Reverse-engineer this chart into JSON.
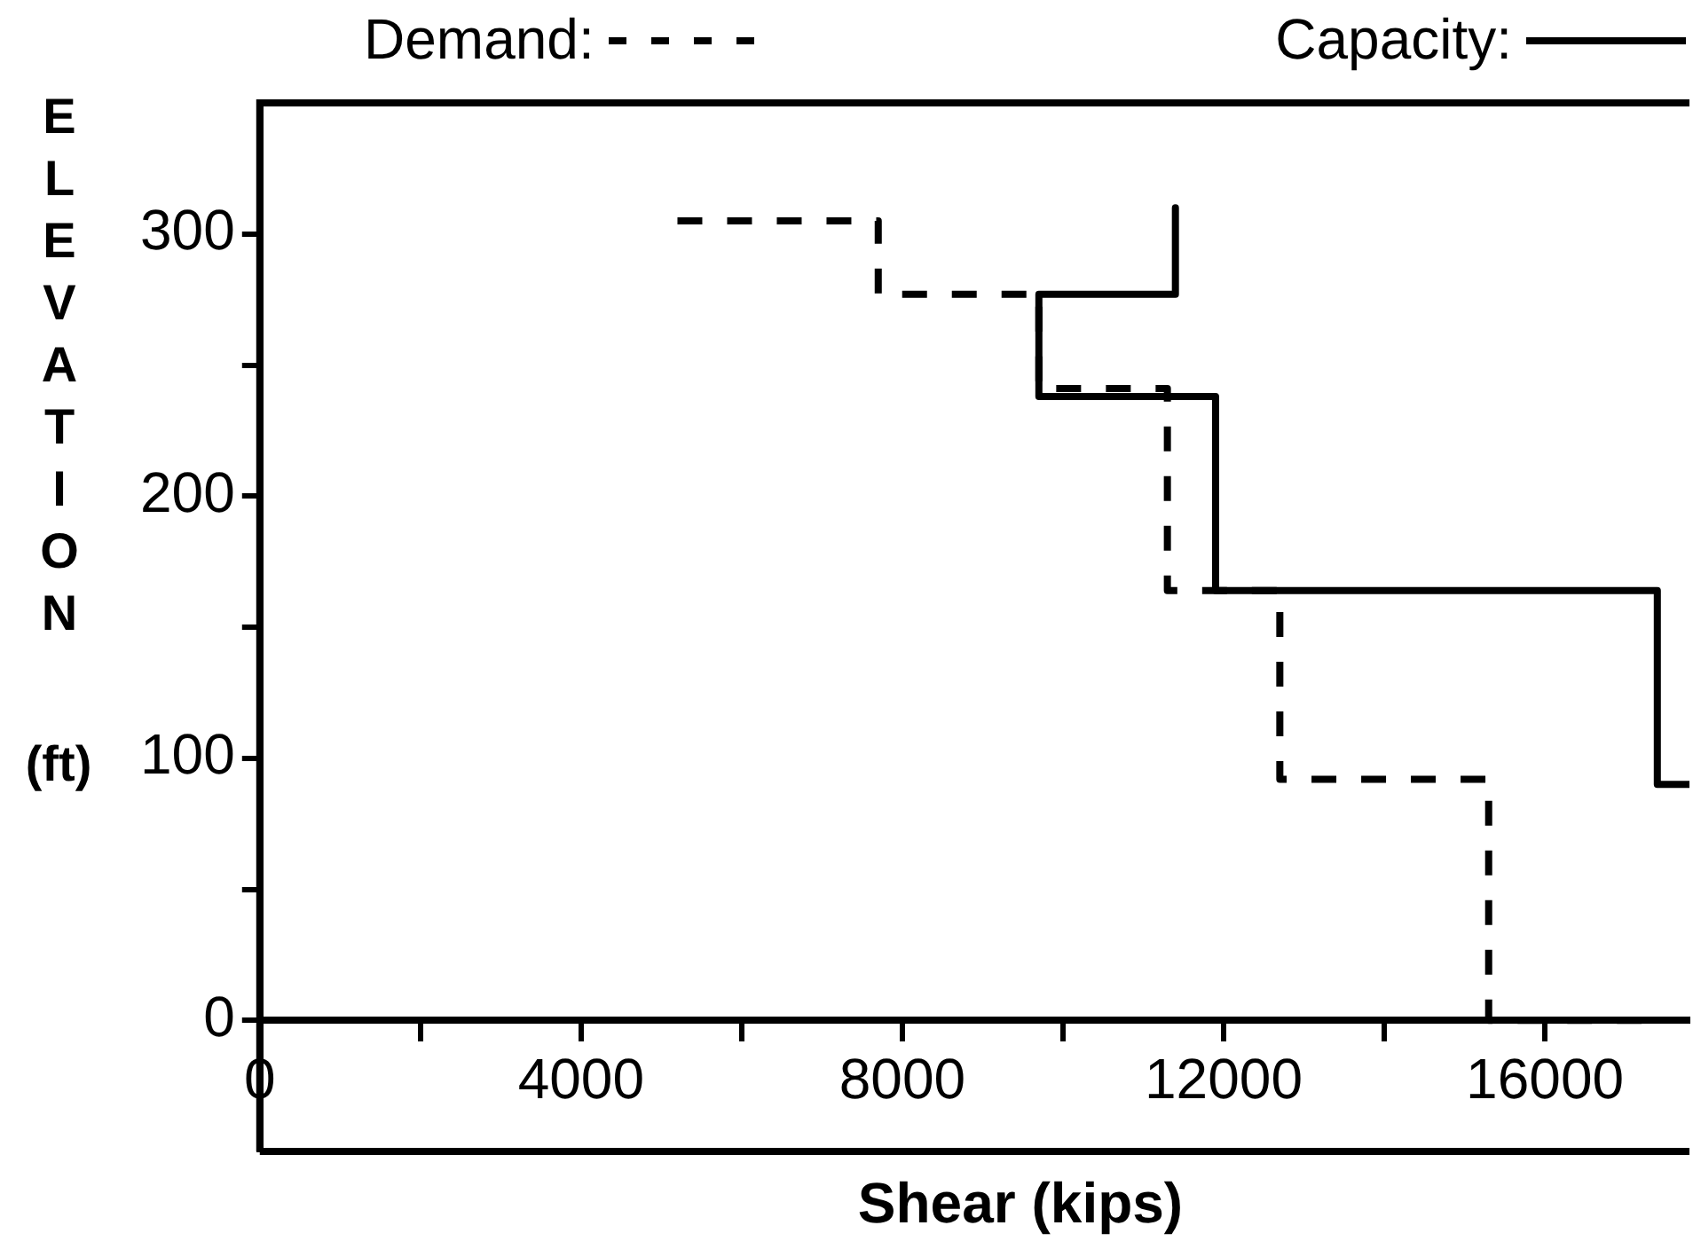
{
  "chart_data": {
    "type": "line",
    "xlabel": "Shear (kips)",
    "ylabel": "ELEVATION (ft)",
    "xlim": [
      0,
      17800
    ],
    "ylim": [
      -50,
      350
    ],
    "xticks": [
      0,
      {
        "value": 2000,
        "label": null
      },
      4000,
      {
        "value": 6000,
        "label": null
      },
      8000,
      {
        "value": 10000,
        "label": null
      },
      12000,
      {
        "value": 14000,
        "label": null
      },
      16000
    ],
    "yticks": [
      0,
      {
        "value": 50,
        "label": null
      },
      100,
      {
        "value": 150,
        "label": null
      },
      200,
      {
        "value": 250,
        "label": null
      },
      300
    ],
    "grid": false,
    "legend": "top",
    "marker": "none",
    "series": [
      {
        "name": "Demand:",
        "color": "#000000",
        "line_style": "dashed",
        "x": [
          5200,
          7700,
          7700,
          9700,
          9700,
          11300,
          11300,
          12700,
          12700,
          15300,
          15300,
          17400
        ],
        "values": [
          305,
          305,
          277,
          277,
          241,
          241,
          164,
          164,
          92,
          92,
          0,
          0
        ]
      },
      {
        "name": "Capacity:",
        "color": "#000000",
        "line_style": "solid",
        "x": [
          11400,
          11400,
          9700,
          9700,
          11900,
          11900,
          17400,
          17400,
          17800
        ],
        "values": [
          310,
          277,
          277,
          238,
          238,
          164,
          164,
          90,
          90
        ]
      }
    ]
  }
}
